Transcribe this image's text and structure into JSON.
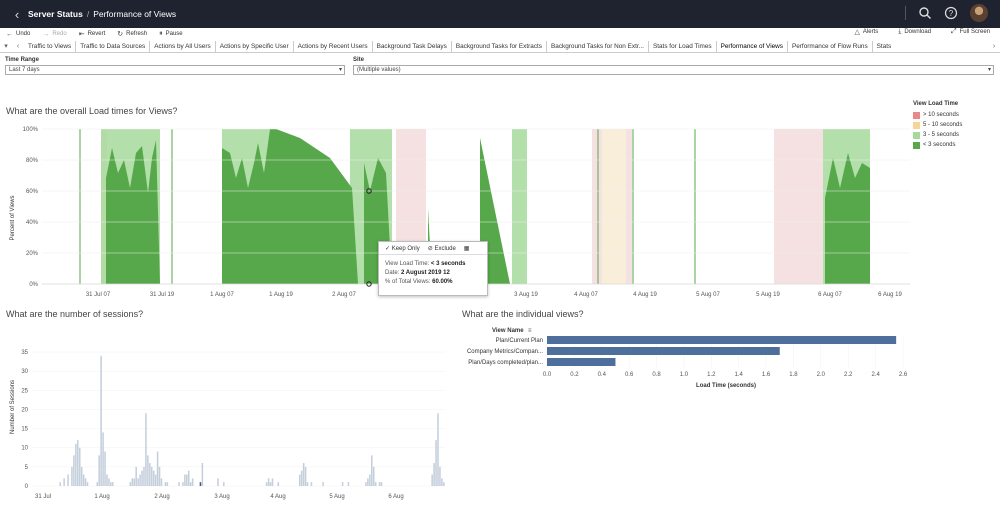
{
  "header": {
    "breadcrumb_root": "Server Status",
    "breadcrumb_sep": "/",
    "breadcrumb_page": "Performance of Views"
  },
  "toolbar": {
    "undo": "Undo",
    "redo": "Redo",
    "revert": "Revert",
    "refresh": "Refresh",
    "pause": "Pause",
    "alerts": "Alerts",
    "download": "Download",
    "fullscreen": "Full Screen"
  },
  "tabs": [
    "Traffic to Views",
    "Traffic to Data Sources",
    "Actions by All Users",
    "Actions by Specific User",
    "Actions by Recent Users",
    "Background Task Delays",
    "Background Tasks for Extracts",
    "Background Tasks for Non Extr...",
    "Stats for Load Times",
    "Performance of Views",
    "Performance of Flow Runs",
    "Stats"
  ],
  "active_tab": "Performance of Views",
  "filters": {
    "time_range": {
      "label": "Time Range",
      "value": "Last 7 days"
    },
    "site": {
      "label": "Site",
      "value": "(Multiple values)"
    }
  },
  "load_times": {
    "title": "What are the overall Load times for Views?",
    "ylabel": "Percent of Views",
    "yticks": [
      "100%",
      "80%",
      "60%",
      "40%",
      "20%",
      "0%"
    ],
    "xticks": [
      "31 Jul 07",
      "31 Jul 19",
      "1 Aug 07",
      "1 Aug 19",
      "2 Aug 07",
      "3 Aug 19",
      "4 Aug 07",
      "4 Aug 19",
      "5 Aug 07",
      "5 Aug 19",
      "6 Aug 07",
      "6 Aug 19"
    ],
    "legend_title": "View Load Time",
    "legend": [
      {
        "label": "> 10 seconds",
        "color": "#e8888a"
      },
      {
        "label": "5 - 10 seconds",
        "color": "#f5d59a"
      },
      {
        "label": "3 - 5 seconds",
        "color": "#a6d99b"
      },
      {
        "label": "< 3 seconds",
        "color": "#56a84a"
      }
    ]
  },
  "tooltip": {
    "keep_only": "Keep Only",
    "exclude": "Exclude",
    "row1_label": "View Load Time:",
    "row1_value": "< 3 seconds",
    "row2_label": "Date:",
    "row2_value": "2 August 2019 12",
    "row3_label": "% of Total Views:",
    "row3_value": "60.00%"
  },
  "sessions": {
    "title": "What are the number of sessions?",
    "ylabel": "Number of Sessions",
    "yticks": [
      "35",
      "30",
      "25",
      "20",
      "15",
      "10",
      "5",
      "0"
    ],
    "xticks": [
      "31 Jul",
      "1 Aug",
      "2 Aug",
      "3 Aug",
      "4 Aug",
      "5 Aug",
      "6 Aug"
    ]
  },
  "views": {
    "title": "What are the individual views?",
    "column_header": "View Name",
    "xlabel": "Load Time (seconds)",
    "xticks": [
      "0.0",
      "0.2",
      "0.4",
      "0.6",
      "0.8",
      "1.0",
      "1.2",
      "1.4",
      "1.6",
      "1.8",
      "2.0",
      "2.2",
      "2.4",
      "2.6"
    ]
  },
  "chart_data": [
    {
      "type": "area",
      "title": "What are the overall Load times for Views?",
      "ylabel": "Percent of Views",
      "ylim": [
        0,
        100
      ],
      "series_names": [
        "> 10 seconds",
        "5 - 10 seconds",
        "3 - 5 seconds",
        "< 3 seconds"
      ],
      "colors": [
        "#e8888a",
        "#f5d59a",
        "#a6d99b",
        "#56a84a"
      ]
    },
    {
      "type": "bar",
      "title": "What are the number of sessions?",
      "ylabel": "Number of Sessions",
      "ylim": [
        0,
        35
      ],
      "values": [
        0,
        0,
        0,
        0,
        0,
        0,
        0,
        0,
        0,
        0,
        1,
        0,
        2,
        0,
        3,
        0,
        5,
        8,
        11,
        12,
        10,
        5,
        3,
        2,
        1,
        0,
        0,
        0,
        0,
        1,
        8,
        34,
        14,
        9,
        3,
        2,
        1,
        1,
        0,
        0,
        0,
        0,
        0,
        0,
        0,
        0,
        1,
        2,
        2,
        5,
        2,
        3,
        4,
        5,
        19,
        8,
        6,
        5,
        4,
        3,
        9,
        5,
        2,
        0,
        1,
        1,
        0,
        0,
        0,
        0,
        0,
        1,
        0,
        1,
        3,
        3,
        4,
        1,
        2,
        0,
        0,
        0,
        1,
        6,
        0,
        0,
        0,
        0,
        0,
        0,
        0,
        2,
        0,
        0,
        1,
        0,
        0,
        0,
        0,
        0,
        0,
        0,
        0,
        0,
        0,
        0,
        0,
        0,
        0,
        0,
        0,
        0,
        0,
        0,
        0,
        0,
        1,
        2,
        1,
        2,
        0,
        0,
        1,
        0,
        0,
        0,
        0,
        0,
        0,
        0,
        0,
        0,
        0,
        3,
        4,
        6,
        5,
        1,
        0,
        1,
        0,
        0,
        0,
        0,
        0,
        1,
        0,
        0,
        0,
        0,
        0,
        0,
        0,
        0,
        0,
        1,
        0,
        0,
        1,
        0,
        0,
        0,
        0,
        0,
        0,
        0,
        0,
        1,
        2,
        3,
        8,
        5,
        1,
        0,
        1,
        1,
        0,
        0,
        0,
        0,
        0,
        0,
        0,
        0,
        0,
        0,
        0,
        0,
        0,
        0,
        0,
        0,
        0,
        0,
        0,
        0,
        0,
        0,
        0,
        0,
        0,
        3,
        6,
        12,
        19,
        5,
        2,
        1
      ]
    },
    {
      "type": "bar",
      "title": "What are the individual views?",
      "xlabel": "Load Time (seconds)",
      "xlim": [
        0,
        2.6
      ],
      "categories": [
        "Plan/Current Plan",
        "Company Metrics/Compan...",
        "Plan/Days completed/plan..."
      ],
      "values": [
        2.55,
        1.7,
        0.5
      ]
    }
  ]
}
